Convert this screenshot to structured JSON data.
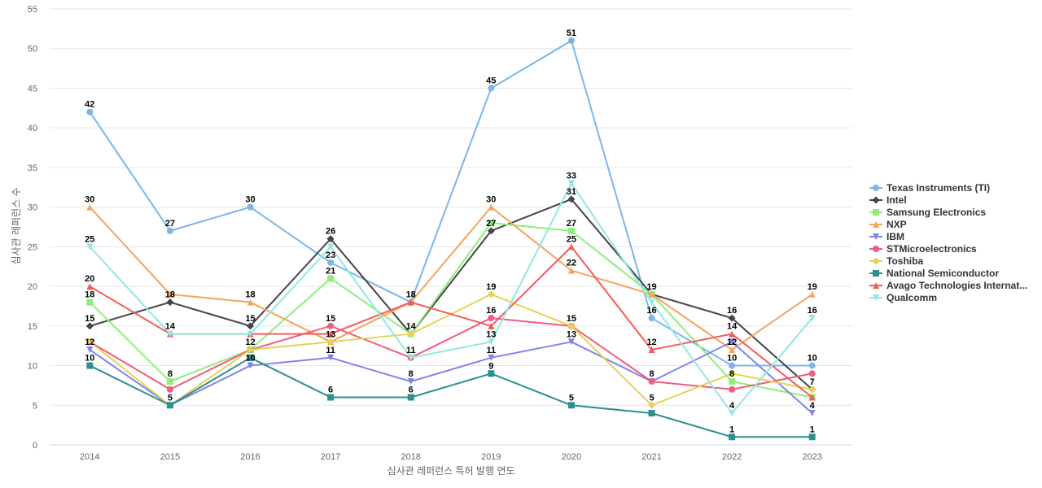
{
  "chart_data": {
    "type": "line",
    "title": "",
    "xlabel": "심사관 레퍼런스 특허 발행 연도",
    "ylabel": "심사관 레퍼런스 수",
    "ylim": [
      0,
      55
    ],
    "yticks": [
      0,
      5,
      10,
      15,
      20,
      25,
      30,
      35,
      40,
      45,
      50,
      55
    ],
    "grid": "horizontal",
    "legend_position": "right",
    "categories": [
      "2014",
      "2015",
      "2016",
      "2017",
      "2018",
      "2019",
      "2020",
      "2021",
      "2022",
      "2023"
    ],
    "series": [
      {
        "name": "Texas Instruments (TI)",
        "color": "#7cb5ec",
        "marker": "circle",
        "values": [
          42,
          27,
          30,
          23,
          18,
          45,
          51,
          16,
          10,
          10
        ]
      },
      {
        "name": "Intel",
        "color": "#434348",
        "marker": "diamond",
        "values": [
          15,
          18,
          15,
          26,
          14,
          27,
          31,
          19,
          16,
          7
        ]
      },
      {
        "name": "Samsung Electronics",
        "color": "#90ed7d",
        "marker": "square",
        "values": [
          18,
          8,
          12,
          21,
          14,
          28,
          27,
          19,
          8,
          6
        ]
      },
      {
        "name": "NXP",
        "color": "#f7a35c",
        "marker": "triangle",
        "values": [
          30,
          19,
          18,
          13,
          18,
          30,
          22,
          19,
          12,
          19
        ]
      },
      {
        "name": "IBM",
        "color": "#8085e9",
        "marker": "triangle-down",
        "values": [
          12,
          5,
          10,
          11,
          8,
          11,
          13,
          8,
          13,
          4
        ]
      },
      {
        "name": "STMicroelectronics",
        "color": "#f15c80",
        "marker": "circle",
        "values": [
          13,
          7,
          12,
          15,
          11,
          16,
          15,
          8,
          7,
          9
        ]
      },
      {
        "name": "Toshiba",
        "color": "#e4d354",
        "marker": "diamond",
        "values": [
          13,
          5,
          12,
          13,
          14,
          19,
          15,
          5,
          9,
          7
        ]
      },
      {
        "name": "National Semiconductor",
        "color": "#2b908f",
        "marker": "square",
        "values": [
          10,
          5,
          11,
          6,
          6,
          9,
          5,
          4,
          1,
          1
        ]
      },
      {
        "name": "Avago Technologies Internat...",
        "color": "#f45b5b",
        "marker": "triangle",
        "values": [
          20,
          14,
          14,
          14,
          18,
          15,
          25,
          12,
          14,
          6
        ]
      },
      {
        "name": "Qualcomm",
        "color": "#91e8e1",
        "marker": "triangle-down",
        "values": [
          25,
          14,
          14,
          25,
          11,
          13,
          33,
          18,
          4,
          16
        ]
      }
    ],
    "data_labels": [
      {
        "category": "2014",
        "text": "42",
        "y": 42
      },
      {
        "category": "2014",
        "text": "30",
        "y": 30
      },
      {
        "category": "2014",
        "text": "25",
        "y": 25
      },
      {
        "category": "2014",
        "text": "20",
        "y": 20
      },
      {
        "category": "2014",
        "text": "18",
        "y": 18
      },
      {
        "category": "2014",
        "text": "15",
        "y": 15
      },
      {
        "category": "2014",
        "text": "12",
        "y": 12
      },
      {
        "category": "2014",
        "text": "10",
        "y": 10
      },
      {
        "category": "2015",
        "text": "27",
        "y": 27
      },
      {
        "category": "2015",
        "text": "18",
        "y": 18
      },
      {
        "category": "2015",
        "text": "14",
        "y": 14
      },
      {
        "category": "2015",
        "text": "8",
        "y": 8
      },
      {
        "category": "2015",
        "text": "5",
        "y": 5
      },
      {
        "category": "2016",
        "text": "30",
        "y": 30
      },
      {
        "category": "2016",
        "text": "18",
        "y": 18
      },
      {
        "category": "2016",
        "text": "15",
        "y": 15
      },
      {
        "category": "2016",
        "text": "12",
        "y": 12
      },
      {
        "category": "2016",
        "text": "10",
        "y": 10
      },
      {
        "category": "2017",
        "text": "26",
        "y": 26
      },
      {
        "category": "2017",
        "text": "23",
        "y": 23
      },
      {
        "category": "2017",
        "text": "21",
        "y": 21
      },
      {
        "category": "2017",
        "text": "15",
        "y": 15
      },
      {
        "category": "2017",
        "text": "13",
        "y": 13
      },
      {
        "category": "2017",
        "text": "11",
        "y": 11
      },
      {
        "category": "2017",
        "text": "6",
        "y": 6
      },
      {
        "category": "2018",
        "text": "18",
        "y": 18
      },
      {
        "category": "2018",
        "text": "14",
        "y": 14
      },
      {
        "category": "2018",
        "text": "11",
        "y": 11
      },
      {
        "category": "2018",
        "text": "8",
        "y": 8
      },
      {
        "category": "2018",
        "text": "6",
        "y": 6
      },
      {
        "category": "2019",
        "text": "45",
        "y": 45
      },
      {
        "category": "2019",
        "text": "30",
        "y": 30
      },
      {
        "category": "2019",
        "text": "27",
        "y": 27
      },
      {
        "category": "2019",
        "text": "19",
        "y": 19
      },
      {
        "category": "2019",
        "text": "16",
        "y": 16
      },
      {
        "category": "2019",
        "text": "13",
        "y": 13
      },
      {
        "category": "2019",
        "text": "11",
        "y": 11
      },
      {
        "category": "2019",
        "text": "9",
        "y": 9
      },
      {
        "category": "2020",
        "text": "51",
        "y": 51
      },
      {
        "category": "2020",
        "text": "33",
        "y": 33
      },
      {
        "category": "2020",
        "text": "31",
        "y": 31
      },
      {
        "category": "2020",
        "text": "27",
        "y": 27
      },
      {
        "category": "2020",
        "text": "25",
        "y": 25
      },
      {
        "category": "2020",
        "text": "22",
        "y": 22
      },
      {
        "category": "2020",
        "text": "15",
        "y": 15
      },
      {
        "category": "2020",
        "text": "13",
        "y": 13
      },
      {
        "category": "2020",
        "text": "5",
        "y": 5
      },
      {
        "category": "2021",
        "text": "19",
        "y": 19
      },
      {
        "category": "2021",
        "text": "16",
        "y": 16
      },
      {
        "category": "2021",
        "text": "12",
        "y": 12
      },
      {
        "category": "2021",
        "text": "8",
        "y": 8
      },
      {
        "category": "2021",
        "text": "5",
        "y": 5
      },
      {
        "category": "2022",
        "text": "16",
        "y": 16
      },
      {
        "category": "2022",
        "text": "14",
        "y": 14
      },
      {
        "category": "2022",
        "text": "12",
        "y": 12
      },
      {
        "category": "2022",
        "text": "10",
        "y": 10
      },
      {
        "category": "2022",
        "text": "8",
        "y": 8
      },
      {
        "category": "2022",
        "text": "4",
        "y": 4
      },
      {
        "category": "2022",
        "text": "1",
        "y": 1
      },
      {
        "category": "2023",
        "text": "19",
        "y": 19
      },
      {
        "category": "2023",
        "text": "16",
        "y": 16
      },
      {
        "category": "2023",
        "text": "10",
        "y": 10
      },
      {
        "category": "2023",
        "text": "7",
        "y": 7
      },
      {
        "category": "2023",
        "text": "4",
        "y": 4
      },
      {
        "category": "2023",
        "text": "1",
        "y": 1
      }
    ]
  }
}
